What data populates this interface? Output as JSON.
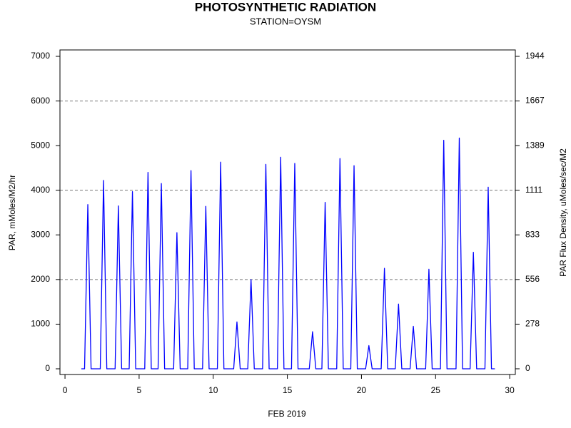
{
  "chart_data": {
    "type": "line",
    "title": "PHOTOSYNTHETIC RADIATION",
    "subtitle": "STATION=OYSM",
    "xlabel": "FEB 2019",
    "ylabel": "PAR, mMoles/M2/hr",
    "y2label": "PAR Flux Density, uMoles/sec/M2",
    "color": "#0000ff",
    "x": [
      1.1,
      1.32,
      1.54,
      1.76,
      2.38,
      2.6,
      2.82,
      3.38,
      3.6,
      3.82,
      4.33,
      4.55,
      4.77,
      5.38,
      5.6,
      5.82,
      6.28,
      6.5,
      6.72,
      7.33,
      7.55,
      7.77,
      8.28,
      8.5,
      8.72,
      9.28,
      9.5,
      9.72,
      10.28,
      10.5,
      10.72,
      11.38,
      11.6,
      11.82,
      12.33,
      12.55,
      12.77,
      13.33,
      13.55,
      13.77,
      14.33,
      14.55,
      14.77,
      15.28,
      15.5,
      15.72,
      16.48,
      16.7,
      16.92,
      17.33,
      17.55,
      17.77,
      18.33,
      18.55,
      18.77,
      19.28,
      19.5,
      19.72,
      20.28,
      20.5,
      20.72,
      21.33,
      21.55,
      21.77,
      22.28,
      22.5,
      22.72,
      23.28,
      23.5,
      23.72,
      24.33,
      24.55,
      24.77,
      25.33,
      25.55,
      25.77,
      26.38,
      26.6,
      26.82,
      27.33,
      27.55,
      27.77,
      28.33,
      28.55,
      28.77,
      29.0
    ],
    "values": [
      0,
      0,
      3680,
      0,
      0,
      4220,
      0,
      0,
      3650,
      0,
      0,
      3970,
      0,
      0,
      4400,
      0,
      0,
      4150,
      0,
      0,
      3050,
      0,
      0,
      4440,
      0,
      0,
      3640,
      0,
      0,
      4630,
      0,
      0,
      1050,
      0,
      0,
      2000,
      0,
      0,
      4580,
      0,
      0,
      4740,
      0,
      0,
      4600,
      0,
      0,
      830,
      0,
      0,
      3730,
      0,
      0,
      4710,
      0,
      0,
      4550,
      0,
      0,
      520,
      0,
      0,
      2250,
      0,
      0,
      1450,
      0,
      0,
      950,
      0,
      0,
      2230,
      0,
      0,
      5120,
      0,
      0,
      5170,
      0,
      0,
      2610,
      0,
      0,
      4070,
      0,
      0
    ],
    "xlim": [
      -0.34,
      30.38
    ],
    "xticks": [
      0,
      5,
      10,
      15,
      20,
      25,
      30
    ],
    "ylim": [
      -128,
      7144
    ],
    "yticks": [
      0,
      1000,
      2000,
      3000,
      4000,
      5000,
      6000,
      7000
    ],
    "ygrid": [
      2000,
      4000,
      6000
    ],
    "y2lim": [
      -35.6,
      1984.4
    ],
    "y2ticks": [
      0,
      {
        "value": 277.8,
        "label": "278"
      },
      {
        "value": 555.6,
        "label": "556"
      },
      {
        "value": 833.3,
        "label": "833"
      },
      {
        "value": 1111.1,
        "label": "1111"
      },
      {
        "value": 1388.9,
        "label": "1389"
      },
      {
        "value": 1666.7,
        "label": "1667"
      },
      {
        "value": 1944.4,
        "label": "1944"
      }
    ]
  }
}
